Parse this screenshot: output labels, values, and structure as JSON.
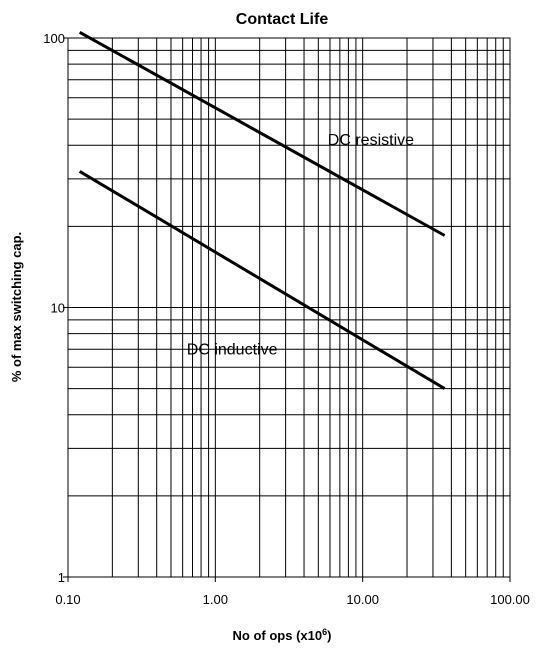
{
  "chart_data": {
    "type": "line",
    "title": "Contact Life",
    "xlabel": "No of ops (x10",
    "xlabel_superscript": "6",
    "xlabel_suffix": ")",
    "ylabel": "% of max switching cap.",
    "x_scale": "log",
    "y_scale": "log",
    "xlim": [
      0.1,
      100
    ],
    "ylim": [
      1,
      100
    ],
    "grid": true,
    "x_ticks": [
      {
        "value": 0.1,
        "label": "0.10"
      },
      {
        "value": 1,
        "label": "1.00"
      },
      {
        "value": 10,
        "label": "10.00"
      },
      {
        "value": 100,
        "label": "100.00"
      }
    ],
    "y_ticks": [
      {
        "value": 1,
        "label": "1"
      },
      {
        "value": 10,
        "label": "10"
      },
      {
        "value": 100,
        "label": "100"
      }
    ],
    "series": [
      {
        "name": "DC resistive",
        "x": [
          0.12,
          36
        ],
        "y": [
          105,
          18.5
        ],
        "color": "#000000"
      },
      {
        "name": "DC inductive",
        "x": [
          0.12,
          36
        ],
        "y": [
          32,
          5
        ],
        "color": "#000000"
      }
    ]
  }
}
